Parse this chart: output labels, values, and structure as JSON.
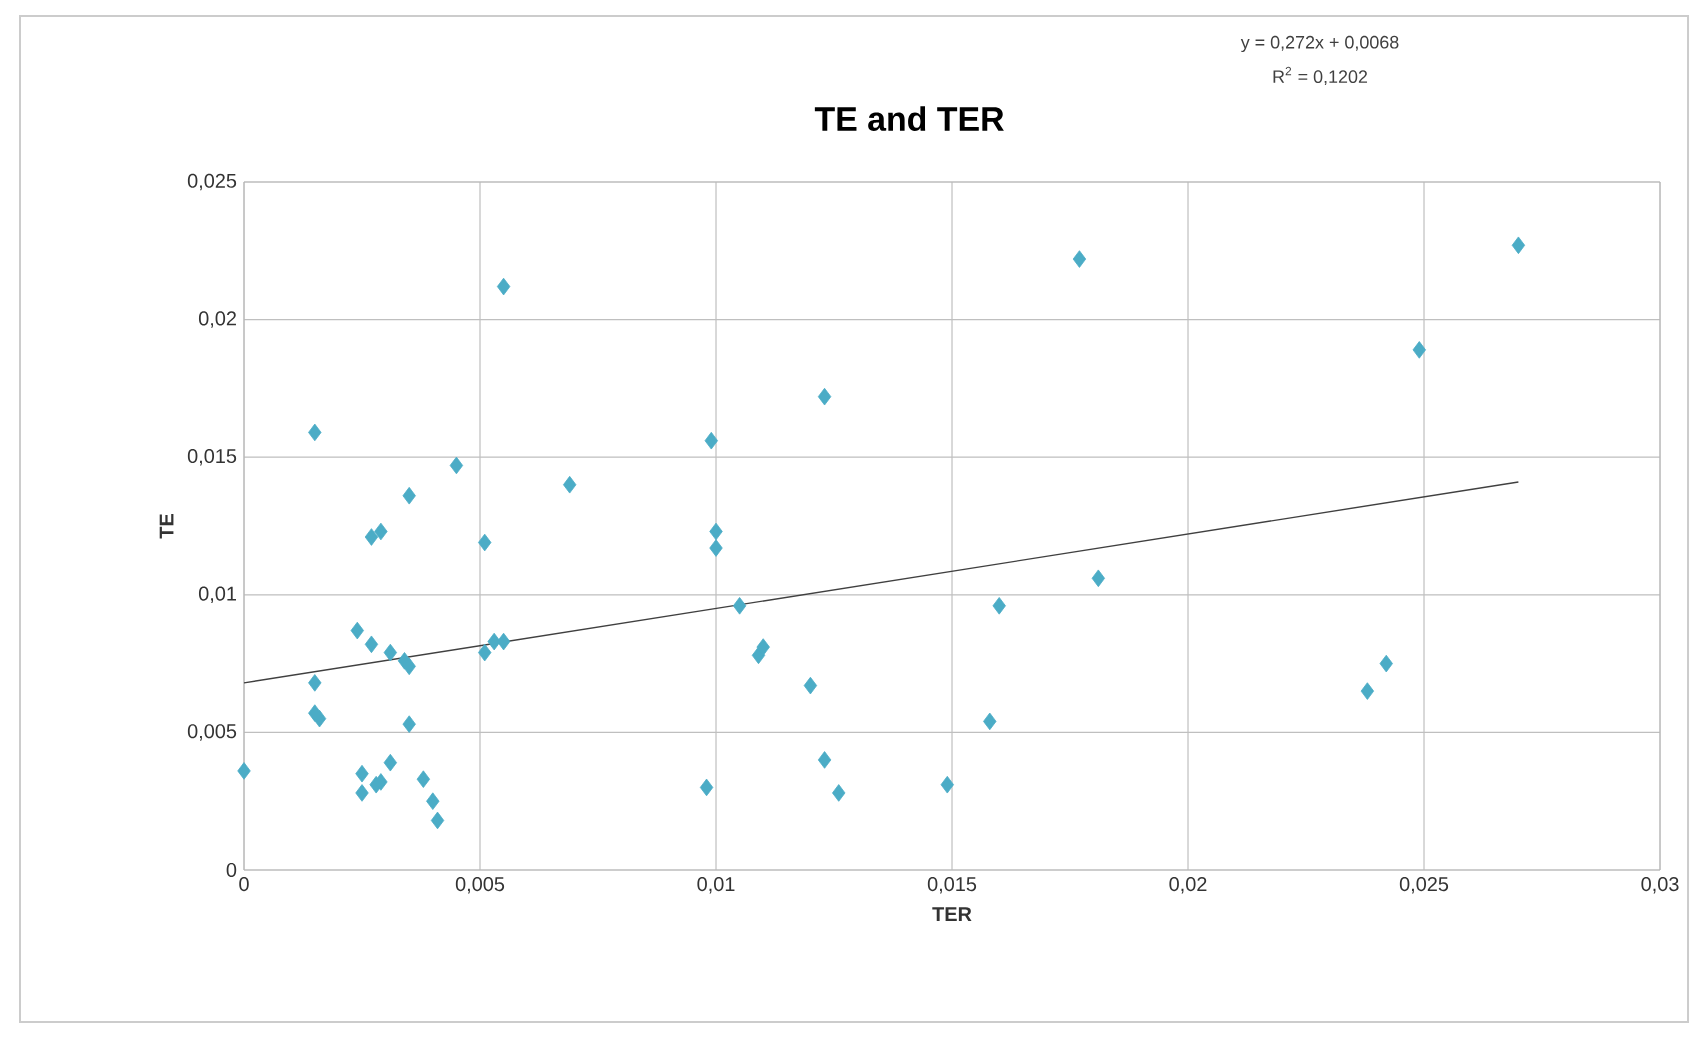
{
  "chart_data": {
    "type": "scatter",
    "title": "TE and TER",
    "xlabel": "TER",
    "ylabel": "TE",
    "annotations": [
      "y = 0,272x + 0,0068",
      "R$^{2}$ = 0,1202"
    ],
    "xlim": [
      0,
      0.03
    ],
    "ylim": [
      0,
      0.025
    ],
    "xticks": [
      0,
      {
        "value": 0.005,
        "label": "0,005"
      },
      {
        "value": 0.01,
        "label": "0,01"
      },
      {
        "value": 0.015,
        "label": "0,015"
      },
      {
        "value": 0.02,
        "label": "0,02"
      },
      {
        "value": 0.025,
        "label": "0,025"
      },
      {
        "value": 0.03,
        "label": "0,03"
      }
    ],
    "yticks": [
      0,
      {
        "value": 0.005,
        "label": "0,005"
      },
      {
        "value": 0.01,
        "label": "0,01"
      },
      {
        "value": 0.015,
        "label": "0,015"
      },
      {
        "value": 0.02,
        "label": "0,02"
      },
      {
        "value": 0.025,
        "label": "0,025"
      }
    ],
    "grid": true,
    "marker": "diamond",
    "series": [
      {
        "color": "#4bacc6",
        "x": [
          0,
          0.0055,
          0.0015,
          0.0045,
          0.0035,
          0.0069,
          0.0027,
          0.0029,
          0.0051,
          0.0024,
          0.0027,
          0.0031,
          0.0034,
          0.0035,
          0.0051,
          0.0053,
          0.0055,
          0.0015,
          0.0015,
          0.0016,
          0.0035,
          0.0025,
          0.0025,
          0.0028,
          0.0031,
          0.0029,
          0.0038,
          0.004,
          0.0041,
          0.0098,
          0.0099,
          0.01,
          0.01,
          0.0105,
          0.0109,
          0.011,
          0.012,
          0.0123,
          0.0123,
          0.0126,
          0.0149,
          0.0158,
          0.016,
          0.0177,
          0.0181,
          0.027,
          0.0249,
          0.0238,
          0.0242
        ],
        "values": [
          0.0036,
          0.0212,
          0.0159,
          0.0147,
          0.0136,
          0.014,
          0.0121,
          0.0123,
          0.0119,
          0.0087,
          0.0082,
          0.0079,
          0.0076,
          0.0074,
          0.0079,
          0.0083,
          0.0083,
          0.0068,
          0.0057,
          0.0055,
          0.0053,
          0.0035,
          0.0028,
          0.0031,
          0.0039,
          0.0032,
          0.0033,
          0.0025,
          0.0018,
          0.003,
          0.0156,
          0.0123,
          0.0117,
          0.0096,
          0.0078,
          0.0081,
          0.0067,
          0.0172,
          0.004,
          0.0028,
          0.0031,
          0.0054,
          0.0096,
          0.0222,
          0.0106,
          0.0227,
          0.0189,
          0.0065,
          0.0075
        ]
      },
      {
        "type": "line",
        "color": "#404040",
        "marker": "none",
        "x": [
          0,
          0.027
        ],
        "values": [
          0.0068,
          0.0141
        ]
      }
    ]
  }
}
